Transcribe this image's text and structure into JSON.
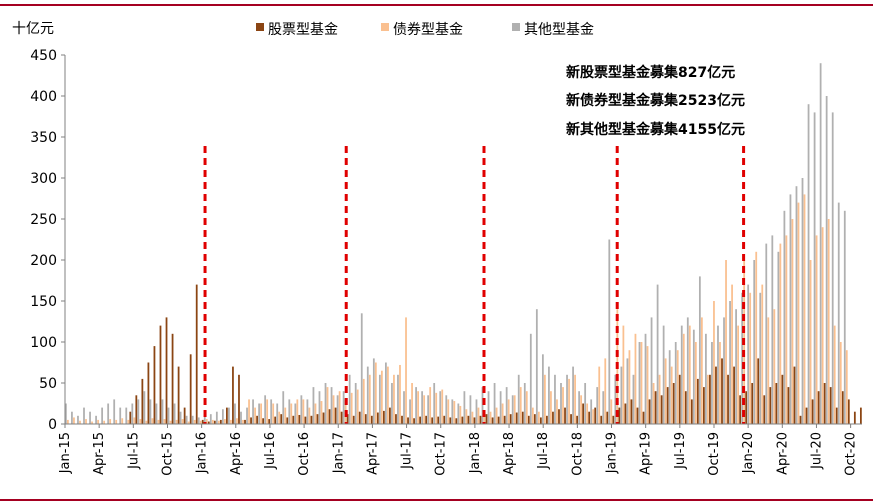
{
  "chart_data": {
    "type": "bar",
    "unit_label": "十亿元",
    "ylim": [
      0,
      450
    ],
    "y_ticks": [
      "0",
      "50",
      "100",
      "150",
      "200",
      "250",
      "300",
      "350",
      "400",
      "450"
    ],
    "x_ticks": [
      "Jan-15",
      "Apr-15",
      "Jul-15",
      "Oct-15",
      "Jan-16",
      "Apr-16",
      "Jul-16",
      "Oct-16",
      "Jan-17",
      "Apr-17",
      "Jul-17",
      "Oct-17",
      "Jan-18",
      "Apr-18",
      "Jul-18",
      "Oct-18",
      "Jan-19",
      "Apr-19",
      "Jul-19",
      "Oct-19",
      "Jan-20",
      "Apr-20",
      "Jul-20",
      "Oct-20"
    ],
    "legend_position": "top",
    "grid": false,
    "series": [
      {
        "name": "股票型基金",
        "color": "#8b4513",
        "values": [
          0,
          0,
          0,
          0,
          0,
          0,
          0,
          0,
          0,
          0,
          15,
          35,
          55,
          75,
          95,
          120,
          130,
          110,
          70,
          20,
          85,
          170,
          5,
          3,
          4,
          5,
          20,
          70,
          60,
          5,
          8,
          10,
          7,
          6,
          9,
          12,
          8,
          10,
          11,
          9,
          10,
          12,
          14,
          18,
          20,
          15,
          12,
          10,
          15,
          12,
          10,
          14,
          16,
          20,
          12,
          10,
          8,
          7,
          9,
          10,
          8,
          9,
          10,
          8,
          7,
          9,
          10,
          8,
          10,
          12,
          8,
          9,
          10,
          12,
          14,
          15,
          10,
          12,
          8,
          10,
          15,
          18,
          20,
          12,
          10,
          25,
          15,
          20,
          10,
          15,
          10,
          20,
          25,
          30,
          20,
          15,
          30,
          40,
          35,
          45,
          50,
          60,
          40,
          30,
          55,
          45,
          60,
          70,
          80,
          60,
          70,
          35,
          40,
          50,
          80,
          35,
          45,
          50,
          60,
          45,
          70,
          10,
          20,
          30,
          40,
          50,
          45,
          20,
          40,
          30,
          15,
          20
        ]
      },
      {
        "name": "债券型基金",
        "color": "#fac090",
        "values": [
          5,
          8,
          4,
          6,
          3,
          5,
          4,
          6,
          5,
          7,
          5,
          8,
          6,
          4,
          7,
          5,
          6,
          4,
          5,
          6,
          3,
          5,
          4,
          6,
          5,
          4,
          6,
          5,
          7,
          5,
          30,
          20,
          25,
          30,
          25,
          15,
          20,
          25,
          30,
          30,
          20,
          25,
          28,
          45,
          35,
          40,
          30,
          38,
          42,
          55,
          60,
          75,
          65,
          70,
          60,
          72,
          130,
          50,
          40,
          35,
          45,
          38,
          42,
          30,
          28,
          22,
          18,
          15,
          20,
          12,
          15,
          20,
          25,
          30,
          35,
          45,
          40,
          20,
          15,
          60,
          40,
          30,
          45,
          55,
          60,
          35,
          25,
          18,
          70,
          80,
          30,
          140,
          120,
          90,
          110,
          100,
          95,
          50,
          60,
          80,
          70,
          90,
          110,
          120,
          100,
          130,
          60,
          150,
          100,
          200,
          170,
          120,
          200,
          160,
          210,
          170,
          130,
          140,
          220,
          230,
          250,
          270,
          280,
          200,
          230,
          240,
          250,
          120,
          100,
          90
        ]
      },
      {
        "name": "其他型基金",
        "color": "#b0b0b0",
        "values": [
          25,
          15,
          10,
          20,
          15,
          10,
          20,
          25,
          30,
          20,
          20,
          25,
          30,
          40,
          30,
          25,
          30,
          20,
          25,
          15,
          10,
          10,
          8,
          10,
          12,
          15,
          18,
          20,
          25,
          15,
          20,
          30,
          25,
          35,
          30,
          25,
          40,
          30,
          25,
          35,
          30,
          45,
          40,
          50,
          45,
          35,
          40,
          60,
          50,
          135,
          70,
          80,
          60,
          75,
          50,
          60,
          40,
          30,
          45,
          40,
          35,
          50,
          40,
          35,
          30,
          25,
          40,
          35,
          30,
          45,
          40,
          50,
          40,
          45,
          35,
          60,
          50,
          110,
          140,
          85,
          70,
          60,
          50,
          60,
          70,
          40,
          50,
          30,
          45,
          40,
          225,
          60,
          70,
          80,
          60,
          100,
          110,
          130,
          170,
          120,
          90,
          100,
          120,
          130,
          115,
          180,
          110,
          100,
          120,
          130,
          150,
          140,
          160,
          170,
          200,
          160,
          220,
          230,
          210,
          260,
          280,
          290,
          300,
          390,
          380,
          440,
          400,
          380,
          270,
          260
        ]
      }
    ],
    "annotations": [
      "新股票型基金募集827亿元",
      "新债券型基金募集2523亿元",
      "新其他型基金募集4155亿元"
    ],
    "markers": [
      {
        "label": "",
        "x_month": 12.3
      },
      {
        "label": "",
        "x_month": 24.7
      },
      {
        "label": "",
        "x_month": 36.8
      },
      {
        "label": "",
        "x_month": 48.5
      },
      {
        "label": "",
        "x_month": 59.6
      }
    ]
  },
  "colors": {
    "frame": "#a50021",
    "marker": "#e00000",
    "axis": "#808080"
  }
}
